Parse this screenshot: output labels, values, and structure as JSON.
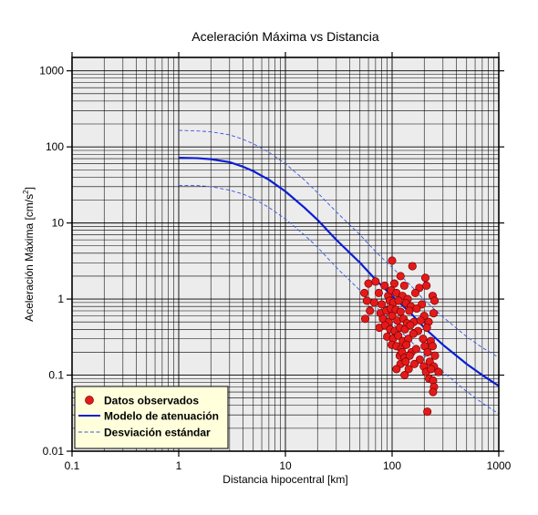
{
  "chart_data": {
    "type": "scatter",
    "title": "Aceleración Máxima vs Distancia",
    "xlabel": "Distancia hipocentral [km]",
    "ylabel": {
      "main": "Aceleración Máxima [cm/s",
      "sup": "2",
      "tail": "]"
    },
    "x_scale": "log",
    "y_scale": "log",
    "xlim": [
      0.1,
      1000
    ],
    "ylim": [
      0.01,
      1500
    ],
    "grid": true,
    "legend_position": "bottom-left",
    "x_ticks": [
      {
        "value": 0.1,
        "label": "0.1"
      },
      {
        "value": 1,
        "label": "1"
      },
      {
        "value": 10,
        "label": "10"
      },
      {
        "value": 100,
        "label": "100"
      },
      {
        "value": 1000,
        "label": "1000"
      }
    ],
    "y_ticks": [
      {
        "value": 0.01,
        "label": "0.01"
      },
      {
        "value": 0.1,
        "label": "0.1"
      },
      {
        "value": 1,
        "label": "1"
      },
      {
        "value": 10,
        "label": "10"
      },
      {
        "value": 100,
        "label": "100"
      },
      {
        "value": 1000,
        "label": "1000"
      }
    ],
    "colors": {
      "points": "#e41a1a",
      "model": "#0a1ed2",
      "deviation": "#3a55e0",
      "plot_background": "#ececec",
      "legend_background": "#ffffdc"
    },
    "series": [
      {
        "name": "Datos observados",
        "kind": "points",
        "points": [
          [
            100,
            3.2
          ],
          [
            155,
            2.7
          ],
          [
            120,
            2.0
          ],
          [
            205,
            1.9
          ],
          [
            60,
            1.6
          ],
          [
            70,
            1.7
          ],
          [
            85,
            1.5
          ],
          [
            105,
            1.6
          ],
          [
            130,
            1.5
          ],
          [
            180,
            1.4
          ],
          [
            210,
            1.5
          ],
          [
            55,
            1.2
          ],
          [
            75,
            1.2
          ],
          [
            92,
            1.1
          ],
          [
            98,
            1.3
          ],
          [
            110,
            1.2
          ],
          [
            125,
            1.1
          ],
          [
            140,
            1.0
          ],
          [
            165,
            1.2
          ],
          [
            240,
            1.1
          ],
          [
            58,
            0.95
          ],
          [
            68,
            0.9
          ],
          [
            80,
            0.85
          ],
          [
            95,
            0.95
          ],
          [
            103,
            0.9
          ],
          [
            115,
            0.95
          ],
          [
            135,
            0.88
          ],
          [
            150,
            0.8
          ],
          [
            190,
            0.85
          ],
          [
            250,
            0.95
          ],
          [
            62,
            0.7
          ],
          [
            78,
            0.65
          ],
          [
            88,
            0.7
          ],
          [
            97,
            0.75
          ],
          [
            108,
            0.72
          ],
          [
            120,
            0.68
          ],
          [
            145,
            0.7
          ],
          [
            170,
            0.75
          ],
          [
            200,
            0.6
          ],
          [
            245,
            0.65
          ],
          [
            56,
            0.55
          ],
          [
            82,
            0.55
          ],
          [
            93,
            0.5
          ],
          [
            100,
            0.6
          ],
          [
            112,
            0.52
          ],
          [
            128,
            0.55
          ],
          [
            138,
            0.48
          ],
          [
            160,
            0.5
          ],
          [
            185,
            0.52
          ],
          [
            220,
            0.5
          ],
          [
            76,
            0.42
          ],
          [
            86,
            0.45
          ],
          [
            96,
            0.4
          ],
          [
            106,
            0.38
          ],
          [
            118,
            0.42
          ],
          [
            132,
            0.4
          ],
          [
            148,
            0.45
          ],
          [
            175,
            0.38
          ],
          [
            212,
            0.42
          ],
          [
            90,
            0.32
          ],
          [
            102,
            0.3
          ],
          [
            114,
            0.33
          ],
          [
            126,
            0.28
          ],
          [
            142,
            0.3
          ],
          [
            158,
            0.35
          ],
          [
            195,
            0.3
          ],
          [
            230,
            0.28
          ],
          [
            99,
            0.25
          ],
          [
            110,
            0.24
          ],
          [
            122,
            0.22
          ],
          [
            136,
            0.25
          ],
          [
            152,
            0.2
          ],
          [
            168,
            0.22
          ],
          [
            202,
            0.24
          ],
          [
            240,
            0.24
          ],
          [
            118,
            0.18
          ],
          [
            124,
            0.2
          ],
          [
            131,
            0.17
          ],
          [
            146,
            0.18
          ],
          [
            182,
            0.16
          ],
          [
            215,
            0.2
          ],
          [
            252,
            0.18
          ],
          [
            120,
            0.14
          ],
          [
            134,
            0.15
          ],
          [
            162,
            0.14
          ],
          [
            198,
            0.13
          ],
          [
            225,
            0.15
          ],
          [
            246,
            0.13
          ],
          [
            110,
            0.12
          ],
          [
            143,
            0.12
          ],
          [
            208,
            0.11
          ],
          [
            232,
            0.12
          ],
          [
            272,
            0.11
          ],
          [
            131,
            0.1
          ],
          [
            222,
            0.09
          ],
          [
            242,
            0.085
          ],
          [
            247,
            0.07
          ],
          [
            242,
            0.06
          ],
          [
            214,
            0.033
          ]
        ]
      },
      {
        "name": "Modelo de atenuación",
        "kind": "line",
        "points": [
          [
            1,
            72
          ],
          [
            1.5,
            71
          ],
          [
            2,
            69
          ],
          [
            3,
            63
          ],
          [
            4,
            55
          ],
          [
            5,
            48
          ],
          [
            7,
            37
          ],
          [
            10,
            26
          ],
          [
            15,
            16
          ],
          [
            20,
            11
          ],
          [
            30,
            6
          ],
          [
            50,
            3
          ],
          [
            70,
            1.8
          ],
          [
            100,
            1.1
          ],
          [
            150,
            0.65
          ],
          [
            200,
            0.42
          ],
          [
            300,
            0.25
          ],
          [
            500,
            0.14
          ],
          [
            700,
            0.1
          ],
          [
            1000,
            0.072
          ]
        ]
      },
      {
        "name": "Desviación estándar",
        "kind": "dashed",
        "curves": [
          [
            [
              1,
              165
            ],
            [
              1.5,
              162
            ],
            [
              2,
              158
            ],
            [
              3,
              144
            ],
            [
              4,
              126
            ],
            [
              5,
              110
            ],
            [
              7,
              85
            ],
            [
              10,
              60
            ],
            [
              15,
              37
            ],
            [
              20,
              25
            ],
            [
              30,
              14
            ],
            [
              50,
              7
            ],
            [
              70,
              4.2
            ],
            [
              100,
              2.6
            ],
            [
              150,
              1.5
            ],
            [
              200,
              0.97
            ],
            [
              300,
              0.58
            ],
            [
              500,
              0.32
            ],
            [
              700,
              0.23
            ],
            [
              1000,
              0.17
            ]
          ],
          [
            [
              1,
              31
            ],
            [
              1.5,
              31
            ],
            [
              2,
              30
            ],
            [
              3,
              27
            ],
            [
              4,
              24
            ],
            [
              5,
              21
            ],
            [
              7,
              16
            ],
            [
              10,
              11.3
            ],
            [
              15,
              7
            ],
            [
              20,
              4.8
            ],
            [
              30,
              2.6
            ],
            [
              50,
              1.3
            ],
            [
              70,
              0.8
            ],
            [
              100,
              0.48
            ],
            [
              150,
              0.28
            ],
            [
              200,
              0.18
            ],
            [
              300,
              0.11
            ],
            [
              500,
              0.061
            ],
            [
              700,
              0.043
            ],
            [
              1000,
              0.031
            ]
          ]
        ]
      }
    ]
  }
}
